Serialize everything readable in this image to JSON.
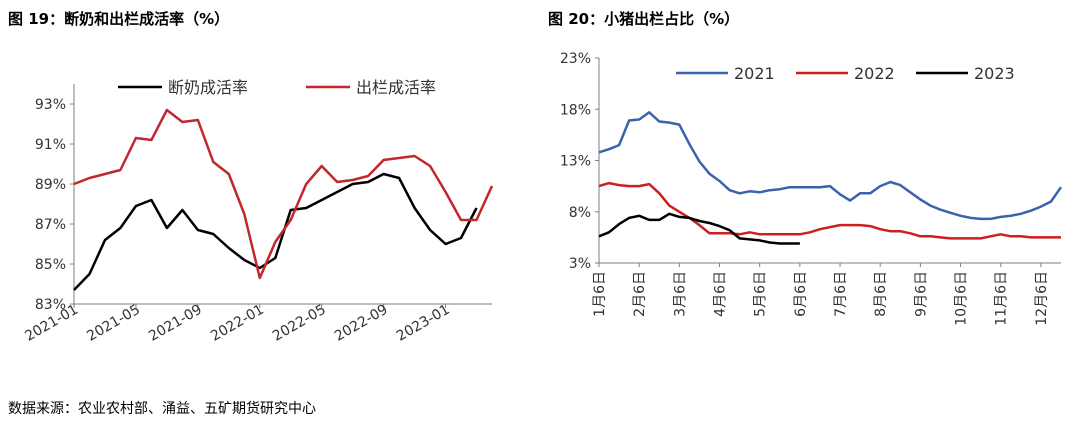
{
  "figure_left": {
    "title": "图 19：断奶和出栏成活率（%）"
  },
  "figure_right": {
    "title": "图 20：小猪出栏占比（%）"
  },
  "source": "数据来源：农业农村部、涌益、五矿期货研究中心",
  "chart_data": [
    {
      "type": "line",
      "title": "",
      "xlabel": "",
      "ylabel": "",
      "ylim": [
        83,
        94
      ],
      "yticks": [
        83,
        85,
        87,
        89,
        91,
        93
      ],
      "ytick_labels": [
        "83%",
        "85%",
        "87%",
        "89%",
        "91%",
        "93%"
      ],
      "x_tick_labels": [
        "2021-01",
        "2021-05",
        "2021-09",
        "2022-01",
        "2022-05",
        "2022-09",
        "2023-01"
      ],
      "x_tick_index": [
        0,
        4,
        8,
        12,
        16,
        20,
        24
      ],
      "n_points": 28,
      "legend_position": "top-center",
      "grid": false,
      "series": [
        {
          "name": "断奶成活率",
          "color": "#000000",
          "values": [
            83.7,
            84.5,
            86.2,
            86.8,
            87.9,
            88.2,
            86.8,
            87.7,
            86.7,
            86.5,
            85.8,
            85.2,
            84.8,
            85.3,
            87.7,
            87.8,
            88.2,
            88.6,
            89.0,
            89.1,
            89.5,
            89.3,
            87.8,
            86.7,
            86.0,
            86.3,
            87.8,
            null
          ]
        },
        {
          "name": "出栏成活率",
          "color": "#c0282d",
          "values": [
            89.0,
            89.3,
            89.5,
            89.7,
            91.3,
            91.2,
            92.7,
            92.1,
            92.2,
            90.1,
            89.5,
            87.5,
            84.3,
            86.1,
            87.2,
            89.0,
            89.9,
            89.1,
            89.2,
            89.4,
            90.2,
            90.3,
            90.4,
            89.9,
            88.6,
            87.2,
            87.2,
            88.9
          ]
        }
      ]
    },
    {
      "type": "line",
      "title": "",
      "xlabel": "",
      "ylabel": "",
      "ylim": [
        3,
        23
      ],
      "yticks": [
        3,
        8,
        13,
        18,
        23
      ],
      "ytick_labels": [
        "3%",
        "8%",
        "13%",
        "18%",
        "23%"
      ],
      "x_tick_labels": [
        "1月6日",
        "2月6日",
        "3月6日",
        "4月6日",
        "5月6日",
        "6月6日",
        "7月6日",
        "8月6日",
        "9月6日",
        "10月6日",
        "11月6日",
        "12月6日"
      ],
      "x_tick_index": [
        0,
        4,
        8,
        12,
        16,
        20,
        24,
        28,
        32,
        36,
        40,
        44
      ],
      "n_points": 47,
      "legend_position": "top",
      "grid": false,
      "series": [
        {
          "name": "2021",
          "color": "#3a63ad",
          "values": [
            13.8,
            14.1,
            14.5,
            16.9,
            17.0,
            17.7,
            16.8,
            16.7,
            16.5,
            14.6,
            12.9,
            11.7,
            11.0,
            10.1,
            9.8,
            10.0,
            9.9,
            10.1,
            10.2,
            10.4,
            10.4,
            10.4,
            10.4,
            10.5,
            9.7,
            9.1,
            9.8,
            9.8,
            10.5,
            10.9,
            10.6,
            9.9,
            9.2,
            8.6,
            8.2,
            7.9,
            7.6,
            7.4,
            7.3,
            7.3,
            7.5,
            7.6,
            7.8,
            8.1,
            8.5,
            9.0,
            10.4
          ]
        },
        {
          "name": "2022",
          "color": "#cc1f1f",
          "values": [
            10.5,
            10.8,
            10.6,
            10.5,
            10.5,
            10.7,
            9.8,
            8.6,
            8.0,
            7.4,
            6.7,
            5.9,
            5.9,
            5.9,
            5.8,
            6.0,
            5.8,
            5.8,
            5.8,
            5.8,
            5.8,
            6.0,
            6.3,
            6.5,
            6.7,
            6.7,
            6.7,
            6.6,
            6.3,
            6.1,
            6.1,
            5.9,
            5.6,
            5.6,
            5.5,
            5.4,
            5.4,
            5.4,
            5.4,
            5.6,
            5.8,
            5.6,
            5.6,
            5.5,
            5.5,
            5.5,
            5.5
          ]
        },
        {
          "name": "2023",
          "color": "#000000",
          "values": [
            5.6,
            6.0,
            6.8,
            7.4,
            7.6,
            7.2,
            7.2,
            7.8,
            7.5,
            7.4,
            7.1,
            6.9,
            6.6,
            6.2,
            5.4,
            5.3,
            5.2,
            5.0,
            4.9,
            4.9,
            4.9,
            null,
            null,
            null,
            null,
            null,
            null,
            null,
            null,
            null,
            null,
            null,
            null,
            null,
            null,
            null,
            null,
            null,
            null,
            null,
            null,
            null,
            null,
            null,
            null,
            null,
            null
          ]
        }
      ]
    }
  ]
}
